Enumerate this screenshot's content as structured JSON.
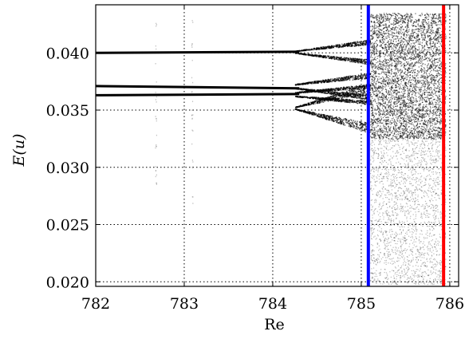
{
  "chart_data": {
    "type": "scatter",
    "title": "",
    "xlabel": "Re",
    "ylabel": "E(u)",
    "xlim": [
      782,
      786.1
    ],
    "ylim": [
      0.0196,
      0.0442
    ],
    "xticks": [
      782,
      783,
      784,
      785,
      786
    ],
    "xtick_labels": [
      "782",
      "783",
      "784",
      "785",
      "786"
    ],
    "yticks": [
      0.02,
      0.025,
      0.03,
      0.035,
      0.04
    ],
    "ytick_labels": [
      "0.020",
      "0.025",
      "0.030",
      "0.035",
      "0.040"
    ],
    "grid": true,
    "grid_style": "dotted",
    "marker_color": "#000000",
    "branches": [
      {
        "x": [
          782.0,
          784.3
        ],
        "y": [
          0.04,
          0.0401
        ]
      },
      {
        "x": [
          782.0,
          784.3
        ],
        "y": [
          0.0371,
          0.0369
        ]
      },
      {
        "x": [
          782.0,
          784.3
        ],
        "y": [
          0.0363,
          0.0364
        ]
      }
    ],
    "chaotic_region": {
      "x": [
        785.1,
        785.95
      ],
      "y": [
        0.0198,
        0.0435
      ]
    },
    "vertical_lines": [
      {
        "x": 785.08,
        "color": "#0000ff"
      },
      {
        "x": 785.93,
        "color": "#ff0000"
      }
    ]
  }
}
